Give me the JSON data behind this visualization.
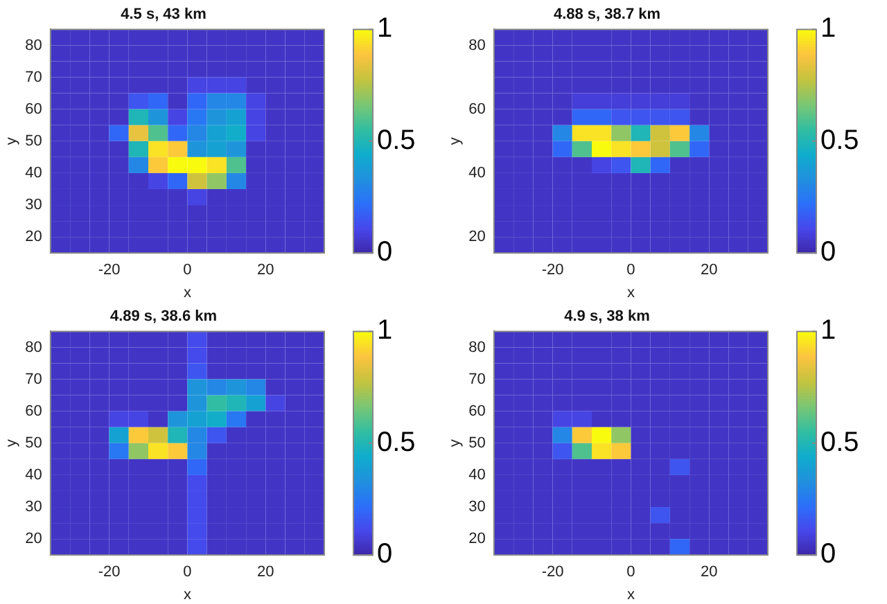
{
  "chart_data": [
    {
      "type": "heatmap",
      "title": "4.5 s, 43 km",
      "xlabel": "x",
      "ylabel": "y",
      "xlim": [
        -35,
        35
      ],
      "ylim": [
        15,
        85
      ],
      "xticks": [
        -20,
        0,
        20
      ],
      "yticks": [
        20,
        30,
        40,
        50,
        60,
        70,
        80
      ],
      "clim": [
        0,
        1
      ],
      "cticks": [
        0,
        0.5,
        1
      ],
      "grid": false,
      "x": [
        -32.5,
        -27.5,
        -22.5,
        -17.5,
        -12.5,
        -7.5,
        -2.5,
        2.5,
        7.5,
        12.5,
        17.5,
        22.5,
        27.5,
        32.5
      ],
      "y": [
        82.5,
        77.5,
        72.5,
        67.5,
        62.5,
        57.5,
        52.5,
        47.5,
        42.5,
        37.5,
        32.5,
        27.5,
        22.5,
        17.5
      ],
      "cells": [
        [
          0.05,
          0.05,
          0.05,
          0.05,
          0.05,
          0.05,
          0.05,
          0.05,
          0.05,
          0.05,
          0.05,
          0.05,
          0.05,
          0.05
        ],
        [
          0.05,
          0.05,
          0.05,
          0.05,
          0.05,
          0.05,
          0.05,
          0.05,
          0.05,
          0.05,
          0.05,
          0.05,
          0.05,
          0.05
        ],
        [
          0.05,
          0.05,
          0.05,
          0.05,
          0.05,
          0.05,
          0.05,
          0.05,
          0.05,
          0.05,
          0.05,
          0.05,
          0.05,
          0.05
        ],
        [
          0.05,
          0.05,
          0.05,
          0.05,
          0.05,
          0.05,
          0.05,
          0.1,
          0.1,
          0.1,
          0.05,
          0.05,
          0.05,
          0.05
        ],
        [
          0.05,
          0.05,
          0.05,
          0.05,
          0.15,
          0.2,
          0.05,
          0.2,
          0.3,
          0.3,
          0.1,
          0.05,
          0.05,
          0.05
        ],
        [
          0.05,
          0.05,
          0.05,
          0.05,
          0.5,
          0.35,
          0.1,
          0.25,
          0.35,
          0.4,
          0.1,
          0.05,
          0.05,
          0.05
        ],
        [
          0.05,
          0.05,
          0.05,
          0.2,
          0.85,
          0.6,
          0.2,
          0.3,
          0.4,
          0.45,
          0.1,
          0.05,
          0.05,
          0.05
        ],
        [
          0.05,
          0.05,
          0.05,
          0.05,
          0.5,
          0.95,
          0.9,
          0.35,
          0.4,
          0.35,
          0.05,
          0.05,
          0.05,
          0.05
        ],
        [
          0.05,
          0.05,
          0.05,
          0.05,
          0.3,
          0.9,
          1,
          1,
          0.95,
          0.6,
          0.05,
          0.05,
          0.05,
          0.05
        ],
        [
          0.05,
          0.05,
          0.05,
          0.05,
          0.05,
          0.1,
          0.2,
          0.8,
          0.7,
          0.3,
          0.05,
          0.05,
          0.05,
          0.05
        ],
        [
          0.05,
          0.05,
          0.05,
          0.05,
          0.05,
          0.05,
          0.05,
          0.1,
          0.05,
          0.05,
          0.05,
          0.05,
          0.05,
          0.05
        ],
        [
          0.05,
          0.05,
          0.05,
          0.05,
          0.05,
          0.05,
          0.05,
          0.05,
          0.05,
          0.05,
          0.05,
          0.05,
          0.05,
          0.05
        ],
        [
          0.05,
          0.05,
          0.05,
          0.05,
          0.05,
          0.05,
          0.05,
          0.05,
          0.05,
          0.05,
          0.05,
          0.05,
          0.05,
          0.05
        ],
        [
          0.05,
          0.05,
          0.05,
          0.05,
          0.05,
          0.05,
          0.05,
          0.05,
          0.05,
          0.05,
          0.05,
          0.05,
          0.05,
          0.05
        ]
      ]
    },
    {
      "type": "heatmap",
      "title": "4.88 s, 38.7 km",
      "xlabel": "x",
      "ylabel": "y",
      "xlim": [
        -35,
        35
      ],
      "ylim": [
        15,
        85
      ],
      "xticks": [
        -20,
        0,
        20
      ],
      "yticks": [
        20,
        40,
        60,
        80
      ],
      "clim": [
        0,
        1
      ],
      "cticks": [
        0,
        0.5,
        1
      ],
      "grid": false,
      "x": [
        -32.5,
        -27.5,
        -22.5,
        -17.5,
        -12.5,
        -7.5,
        -2.5,
        2.5,
        7.5,
        12.5,
        17.5,
        22.5,
        27.5,
        32.5
      ],
      "y": [
        82.5,
        77.5,
        72.5,
        67.5,
        62.5,
        57.5,
        52.5,
        47.5,
        42.5,
        37.5,
        32.5,
        27.5,
        22.5,
        17.5
      ],
      "cells": [
        [
          0.05,
          0.05,
          0.05,
          0.05,
          0.05,
          0.05,
          0.05,
          0.05,
          0.05,
          0.05,
          0.05,
          0.05,
          0.05,
          0.05
        ],
        [
          0.05,
          0.05,
          0.05,
          0.05,
          0.05,
          0.05,
          0.05,
          0.05,
          0.05,
          0.05,
          0.05,
          0.05,
          0.05,
          0.05
        ],
        [
          0.05,
          0.05,
          0.05,
          0.05,
          0.05,
          0.05,
          0.05,
          0.05,
          0.05,
          0.05,
          0.05,
          0.05,
          0.05,
          0.05
        ],
        [
          0.05,
          0.05,
          0.05,
          0.05,
          0.05,
          0.05,
          0.05,
          0.05,
          0.05,
          0.05,
          0.05,
          0.05,
          0.05,
          0.05
        ],
        [
          0.05,
          0.05,
          0.05,
          0.05,
          0.08,
          0.08,
          0.08,
          0.08,
          0.08,
          0.08,
          0.05,
          0.05,
          0.05,
          0.05
        ],
        [
          0.05,
          0.05,
          0.05,
          0.05,
          0.2,
          0.2,
          0.15,
          0.15,
          0.15,
          0.15,
          0.05,
          0.05,
          0.05,
          0.05
        ],
        [
          0.05,
          0.05,
          0.05,
          0.3,
          0.95,
          0.95,
          0.7,
          0.5,
          0.8,
          0.9,
          0.3,
          0.05,
          0.05,
          0.05
        ],
        [
          0.05,
          0.05,
          0.05,
          0.2,
          0.6,
          1,
          0.95,
          0.9,
          0.8,
          0.6,
          0.2,
          0.05,
          0.05,
          0.05
        ],
        [
          0.05,
          0.05,
          0.05,
          0.05,
          0.05,
          0.1,
          0.15,
          0.5,
          0.2,
          0.05,
          0.05,
          0.05,
          0.05,
          0.05
        ],
        [
          0.05,
          0.05,
          0.05,
          0.05,
          0.05,
          0.05,
          0.05,
          0.05,
          0.05,
          0.05,
          0.05,
          0.05,
          0.05,
          0.05
        ],
        [
          0.05,
          0.05,
          0.05,
          0.05,
          0.05,
          0.05,
          0.05,
          0.05,
          0.05,
          0.05,
          0.05,
          0.05,
          0.05,
          0.05
        ],
        [
          0.05,
          0.05,
          0.05,
          0.05,
          0.05,
          0.05,
          0.05,
          0.05,
          0.05,
          0.05,
          0.05,
          0.05,
          0.05,
          0.05
        ],
        [
          0.05,
          0.05,
          0.05,
          0.05,
          0.05,
          0.05,
          0.05,
          0.05,
          0.05,
          0.05,
          0.05,
          0.05,
          0.05,
          0.05
        ],
        [
          0.05,
          0.05,
          0.05,
          0.05,
          0.05,
          0.05,
          0.05,
          0.05,
          0.05,
          0.05,
          0.05,
          0.05,
          0.05,
          0.05
        ]
      ]
    },
    {
      "type": "heatmap",
      "title": "4.89 s, 38.6 km",
      "xlabel": "x",
      "ylabel": "y",
      "xlim": [
        -35,
        35
      ],
      "ylim": [
        15,
        85
      ],
      "xticks": [
        -20,
        0,
        20
      ],
      "yticks": [
        20,
        30,
        40,
        50,
        60,
        70,
        80
      ],
      "clim": [
        0,
        1
      ],
      "cticks": [
        0,
        0.5,
        1
      ],
      "grid": false,
      "x": [
        -32.5,
        -27.5,
        -22.5,
        -17.5,
        -12.5,
        -7.5,
        -2.5,
        2.5,
        7.5,
        12.5,
        17.5,
        22.5,
        27.5,
        32.5
      ],
      "y": [
        82.5,
        77.5,
        72.5,
        67.5,
        62.5,
        57.5,
        52.5,
        47.5,
        42.5,
        37.5,
        32.5,
        27.5,
        22.5,
        17.5
      ],
      "cells": [
        [
          0.05,
          0.05,
          0.05,
          0.05,
          0.05,
          0.05,
          0.05,
          0.12,
          0.05,
          0.05,
          0.05,
          0.05,
          0.05,
          0.05
        ],
        [
          0.05,
          0.05,
          0.05,
          0.05,
          0.05,
          0.05,
          0.05,
          0.12,
          0.05,
          0.05,
          0.05,
          0.05,
          0.05,
          0.05
        ],
        [
          0.05,
          0.05,
          0.05,
          0.05,
          0.05,
          0.05,
          0.05,
          0.15,
          0.05,
          0.05,
          0.05,
          0.05,
          0.05,
          0.05
        ],
        [
          0.05,
          0.05,
          0.05,
          0.05,
          0.05,
          0.05,
          0.05,
          0.35,
          0.3,
          0.35,
          0.3,
          0.05,
          0.05,
          0.05
        ],
        [
          0.05,
          0.05,
          0.05,
          0.05,
          0.05,
          0.05,
          0.05,
          0.35,
          0.55,
          0.5,
          0.4,
          0.1,
          0.05,
          0.05
        ],
        [
          0.05,
          0.05,
          0.05,
          0.1,
          0.1,
          0.05,
          0.35,
          0.4,
          0.45,
          0.25,
          0.05,
          0.05,
          0.05,
          0.05
        ],
        [
          0.05,
          0.05,
          0.05,
          0.4,
          0.9,
          0.8,
          0.5,
          0.3,
          0.15,
          0.05,
          0.05,
          0.05,
          0.05,
          0.05
        ],
        [
          0.05,
          0.05,
          0.05,
          0.25,
          0.7,
          0.95,
          0.9,
          0.3,
          0.05,
          0.05,
          0.05,
          0.05,
          0.05,
          0.05
        ],
        [
          0.05,
          0.05,
          0.05,
          0.05,
          0.05,
          0.05,
          0.05,
          0.2,
          0.05,
          0.05,
          0.05,
          0.05,
          0.05,
          0.05
        ],
        [
          0.05,
          0.05,
          0.05,
          0.05,
          0.05,
          0.05,
          0.05,
          0.12,
          0.05,
          0.05,
          0.05,
          0.05,
          0.05,
          0.05
        ],
        [
          0.05,
          0.05,
          0.05,
          0.05,
          0.05,
          0.05,
          0.05,
          0.12,
          0.05,
          0.05,
          0.05,
          0.05,
          0.05,
          0.05
        ],
        [
          0.05,
          0.05,
          0.05,
          0.05,
          0.05,
          0.05,
          0.05,
          0.12,
          0.05,
          0.05,
          0.05,
          0.05,
          0.05,
          0.05
        ],
        [
          0.05,
          0.05,
          0.05,
          0.05,
          0.05,
          0.05,
          0.05,
          0.12,
          0.05,
          0.05,
          0.05,
          0.05,
          0.05,
          0.05
        ],
        [
          0.05,
          0.05,
          0.05,
          0.05,
          0.05,
          0.05,
          0.05,
          0.12,
          0.05,
          0.05,
          0.05,
          0.05,
          0.05,
          0.05
        ]
      ]
    },
    {
      "type": "heatmap",
      "title": "4.9 s, 38 km",
      "xlabel": "x",
      "ylabel": "y",
      "xlim": [
        -35,
        35
      ],
      "ylim": [
        15,
        85
      ],
      "xticks": [
        -20,
        0,
        20
      ],
      "yticks": [
        20,
        30,
        40,
        50,
        60,
        70,
        80
      ],
      "clim": [
        0,
        1
      ],
      "cticks": [
        0,
        0.5,
        1
      ],
      "grid": false,
      "x": [
        -32.5,
        -27.5,
        -22.5,
        -17.5,
        -12.5,
        -7.5,
        -2.5,
        2.5,
        7.5,
        12.5,
        17.5,
        22.5,
        27.5,
        32.5
      ],
      "y": [
        82.5,
        77.5,
        72.5,
        67.5,
        62.5,
        57.5,
        52.5,
        47.5,
        42.5,
        37.5,
        32.5,
        27.5,
        22.5,
        17.5
      ],
      "cells": [
        [
          0.05,
          0.05,
          0.05,
          0.05,
          0.05,
          0.05,
          0.05,
          0.05,
          0.05,
          0.05,
          0.05,
          0.05,
          0.05,
          0.05
        ],
        [
          0.05,
          0.05,
          0.05,
          0.05,
          0.05,
          0.05,
          0.05,
          0.05,
          0.05,
          0.05,
          0.05,
          0.05,
          0.05,
          0.05
        ],
        [
          0.05,
          0.05,
          0.05,
          0.05,
          0.05,
          0.05,
          0.05,
          0.05,
          0.05,
          0.05,
          0.05,
          0.05,
          0.05,
          0.05
        ],
        [
          0.05,
          0.05,
          0.05,
          0.05,
          0.05,
          0.05,
          0.05,
          0.05,
          0.05,
          0.05,
          0.05,
          0.05,
          0.05,
          0.05
        ],
        [
          0.05,
          0.05,
          0.05,
          0.05,
          0.05,
          0.05,
          0.05,
          0.05,
          0.05,
          0.05,
          0.05,
          0.05,
          0.05,
          0.05
        ],
        [
          0.05,
          0.05,
          0.05,
          0.1,
          0.1,
          0.05,
          0.05,
          0.05,
          0.05,
          0.05,
          0.05,
          0.05,
          0.05,
          0.05
        ],
        [
          0.05,
          0.05,
          0.05,
          0.3,
          0.9,
          1,
          0.7,
          0.05,
          0.05,
          0.05,
          0.05,
          0.05,
          0.05,
          0.05
        ],
        [
          0.05,
          0.05,
          0.05,
          0.15,
          0.6,
          0.95,
          0.9,
          0.05,
          0.05,
          0.05,
          0.05,
          0.05,
          0.05,
          0.05
        ],
        [
          0.05,
          0.05,
          0.05,
          0.05,
          0.05,
          0.05,
          0.05,
          0.05,
          0.05,
          0.15,
          0.05,
          0.05,
          0.05,
          0.05
        ],
        [
          0.05,
          0.05,
          0.05,
          0.05,
          0.05,
          0.05,
          0.05,
          0.05,
          0.05,
          0.05,
          0.05,
          0.05,
          0.05,
          0.05
        ],
        [
          0.05,
          0.05,
          0.05,
          0.05,
          0.05,
          0.05,
          0.05,
          0.05,
          0.05,
          0.05,
          0.05,
          0.05,
          0.05,
          0.05
        ],
        [
          0.05,
          0.05,
          0.05,
          0.05,
          0.05,
          0.05,
          0.05,
          0.05,
          0.15,
          0.05,
          0.05,
          0.05,
          0.05,
          0.05
        ],
        [
          0.05,
          0.05,
          0.05,
          0.05,
          0.05,
          0.05,
          0.05,
          0.05,
          0.05,
          0.05,
          0.05,
          0.05,
          0.05,
          0.05
        ],
        [
          0.05,
          0.05,
          0.05,
          0.05,
          0.05,
          0.05,
          0.05,
          0.05,
          0.05,
          0.2,
          0.05,
          0.05,
          0.05,
          0.05
        ]
      ]
    }
  ]
}
